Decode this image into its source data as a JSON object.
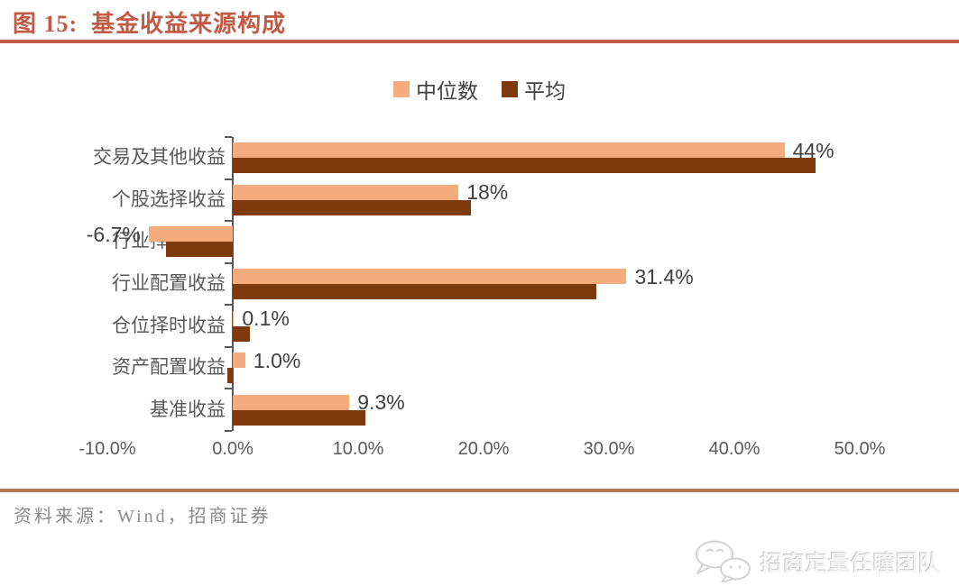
{
  "figure": {
    "title": "图 15:  基金收益来源构成"
  },
  "legend": {
    "items": [
      {
        "label": "中位数",
        "color": "#F4AC7D"
      },
      {
        "label": "平均",
        "color": "#7E3A0D"
      }
    ]
  },
  "chart_data": {
    "type": "bar",
    "orientation": "horizontal",
    "title": "基金收益来源构成",
    "categories": [
      "交易及其他收益",
      "个股选择收益",
      "行业择时收益",
      "行业配置收益",
      "仓位择时收益",
      "资产配置收益",
      "基准收益"
    ],
    "series": [
      {
        "name": "中位数",
        "color": "#F4AC7D",
        "values": [
          44,
          18,
          -6.7,
          31.4,
          0.1,
          1.0,
          9.3
        ],
        "data_labels": [
          "44%",
          "18%",
          "-6.7%",
          "31.4%",
          "0.1%",
          "1.0%",
          "9.3%"
        ]
      },
      {
        "name": "平均",
        "color": "#7E3A0D",
        "values": [
          46.5,
          19,
          -5.3,
          29,
          1.4,
          -0.4,
          10.6
        ],
        "data_labels": null
      }
    ],
    "xlim": [
      -10,
      50
    ],
    "xtick_values": [
      -10,
      0,
      10,
      20,
      30,
      40,
      50
    ],
    "xtick_labels": [
      "-10.0%",
      "0.0%",
      "10.0%",
      "20.0%",
      "30.0%",
      "40.0%",
      "50.0%"
    ],
    "grid": false,
    "legend_position": "top"
  },
  "footer": {
    "source": "资料来源：Wind，招商证券"
  },
  "watermark": {
    "icon": "wechat-icon",
    "text": "招商定量任瞳团队"
  }
}
